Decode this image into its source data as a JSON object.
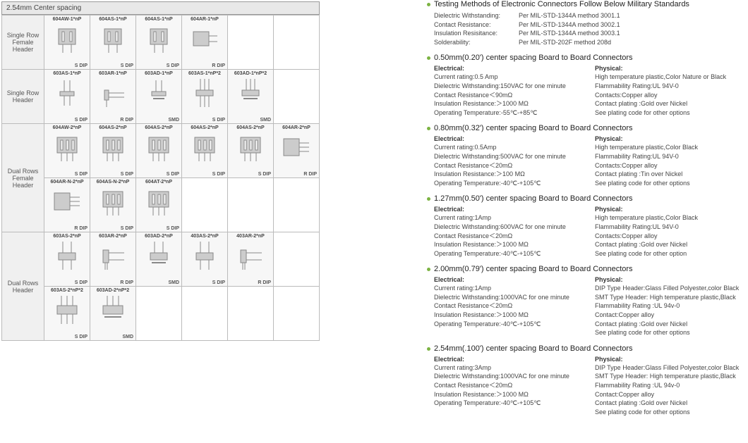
{
  "left": {
    "title": "2.54mm Center spacing",
    "rows": [
      {
        "label": "Single Row Female Header",
        "cells": [
          {
            "part": "604AW-1*nP",
            "pkg": "S DIP",
            "svg": "fh"
          },
          {
            "part": "604AS-1*nP",
            "pkg": "S DIP",
            "svg": "fh"
          },
          {
            "part": "604AS-1*nP",
            "pkg": "S DIP",
            "svg": "fh"
          },
          {
            "part": "604AR-1*nP",
            "pkg": "R DIP",
            "svg": "fhr"
          },
          null,
          null
        ]
      },
      {
        "label": "Single Row Header",
        "cells": [
          {
            "part": "603AS-1*nP",
            "pkg": "S DIP",
            "svg": "hs"
          },
          {
            "part": "603AR-1*nP",
            "pkg": "R DIP",
            "svg": "hr"
          },
          {
            "part": "603AD-1*nP",
            "pkg": "SMD",
            "svg": "hd"
          },
          {
            "part": "603AS-1*nP*2",
            "pkg": "S DIP",
            "svg": "hs2"
          },
          {
            "part": "603AD-1*nP*2",
            "pkg": "SMD",
            "svg": "hd2"
          },
          null
        ]
      },
      {
        "label": "Dual Rows Female Header",
        "cells": [
          {
            "part": "604AW-2*nP",
            "pkg": "S DIP",
            "svg": "fh2"
          },
          {
            "part": "604AS-2*nP",
            "pkg": "S DIP",
            "svg": "fh2"
          },
          {
            "part": "604AS-2*nP",
            "pkg": "S DIP",
            "svg": "fh2"
          },
          {
            "part": "604AS-2*nP",
            "pkg": "S DIP",
            "svg": "fh2"
          },
          {
            "part": "604AS-2*nP",
            "pkg": "S DIP",
            "svg": "fh2"
          },
          {
            "part": "604AR-2*nP",
            "pkg": "R DIP",
            "svg": "fh2r"
          }
        ]
      },
      {
        "label": "",
        "cells": [
          {
            "part": "604AR-N-2*nP",
            "pkg": "R DIP",
            "svg": "fh2r"
          },
          {
            "part": "604AS-N-2*nP",
            "pkg": "S DIP",
            "svg": "fh2"
          },
          {
            "part": "604AT-2*nP",
            "pkg": "S DIP",
            "svg": "fh2"
          },
          null,
          null,
          null
        ]
      },
      {
        "label": "Dual Rows Header",
        "cells": [
          {
            "part": "603AS-2*nP",
            "pkg": "S DIP",
            "svg": "hs2d"
          },
          {
            "part": "603AR-2*nP",
            "pkg": "R DIP",
            "svg": "hr2"
          },
          {
            "part": "603AD-2*nP",
            "pkg": "SMD",
            "svg": "hd2d"
          },
          {
            "part": "403AS-2*nP",
            "pkg": "S DIP",
            "svg": "hs2d"
          },
          {
            "part": "403AR-2*nP",
            "pkg": "R DIP",
            "svg": "hr2"
          },
          null
        ]
      },
      {
        "label": "",
        "cells": [
          {
            "part": "603AS-2*nP*2",
            "pkg": "S DIP",
            "svg": "hs2x"
          },
          {
            "part": "603AD-2*nP*2",
            "pkg": "SMD",
            "svg": "hd2x"
          },
          null,
          null,
          null,
          null
        ]
      }
    ]
  },
  "right": {
    "top_heading": "Testing Methods of Electronic Connectors Follow Below Military Standards",
    "top_lines": [
      {
        "k": "Dielectric Withstanding:",
        "v": "Per MIL-STD-1344A method 3001.1"
      },
      {
        "k": "Contact  Resistance:",
        "v": "Per MIL-STD-1344A method 3002.1"
      },
      {
        "k": "Insulation Resisitance:",
        "v": "Per MIL-STD-1344A method 3003.1"
      },
      {
        "k": "Solderability:",
        "v": "Per MIL-STD-202F method 208d"
      }
    ],
    "sections": [
      {
        "heading": "0.50mm(0.20') center spacing Board to Board Connectors",
        "elec": [
          "Current rating:0.5 Amp",
          "Dielectric Withstanding:150VAC for one minute",
          "Contact Resistance＜90mΩ",
          "Insulation Resistance:＞1000 MΩ",
          "Operating  Temperature:-55℃-+85℃"
        ],
        "phys": [
          "High temperature plastic,Color Nature or Black",
          "Flammability Rating:UL 94V-0",
          "Contacts:Copper alloy",
          "Contact plating :Gold over Nickel",
          "See plating code for other options"
        ]
      },
      {
        "heading": "0.80mm(0.32') center spacing Board to Board Connectors",
        "elec": [
          "Current rating:0.5Amp",
          "Dielectric Withstanding:500VAC for one minute",
          "Contact Resistance＜20mΩ",
          "Insulation Resistance:＞100 MΩ",
          "Operating  Temperature:-40℃-+105℃"
        ],
        "phys": [
          "High temperature plastic,Color Black",
          "Flammability Rating:UL 94V-0",
          "Contacts:Copper alloy",
          "Contact plating :Tin over Nickel",
          "See plating code for other options"
        ]
      },
      {
        "heading": "1.27mm(0.50') center spacing Board to Board Connectors",
        "elec": [
          "Current rating:1Amp",
          "Dielectric Withstanding:600VAC for one minute",
          "Contact Resistance＜20mΩ",
          "Insulation Resistance:＞1000 MΩ",
          "Operating  Temperature:-40℃-+105℃"
        ],
        "phys": [
          "High temperature plastic,Color Black",
          "Flammability Rating:UL 94V-0",
          "Contacts:Copper alloy",
          "Contact plating :Gold  over Nickel",
          "See plating code for other option"
        ]
      },
      {
        "heading": "2.00mm(0.79') center spacing Board to Board Connectors",
        "elec": [
          "Current rating:1Amp",
          "Dielectric Withstanding:1000VAC for one minute",
          "Contact Resistance＜20mΩ",
          "Insulation Resistance:＞1000 MΩ",
          "Operating  Temperature:-40℃-+105℃"
        ],
        "phys": [
          "DIP Type Header:Glass Filled Polyester,color Black",
          "SMT Type Header: High temperature plastic,Black",
          "Flammability Rating :UL 94v-0",
          "Contact:Copper alloy",
          "Contact plating :Gold over Nickel",
          "See plating code for other options"
        ]
      },
      {
        "heading": "2.54mm(.100') center spacing Board to Board Connectors",
        "elec": [
          "Current rating:3Amp",
          "Dielectric Withstanding:1000VAC for one minute",
          "Contact Resistance＜20mΩ",
          "Insulation Resistance:＞1000 MΩ",
          "Operating  Temperature:-40℃-+105℃"
        ],
        "phys": [
          "DIP Type Header:Glass Filled Polyester,color Black",
          "SMT Type Header: High temperature plastic,Black",
          "Flammability Rating :UL 94v-0",
          "Contact:Copper alloy",
          "Contact plating :Gold over Nickel",
          "See plating code for other options"
        ]
      }
    ],
    "elec_label": "Electrical:",
    "phys_label": "Physical:"
  }
}
